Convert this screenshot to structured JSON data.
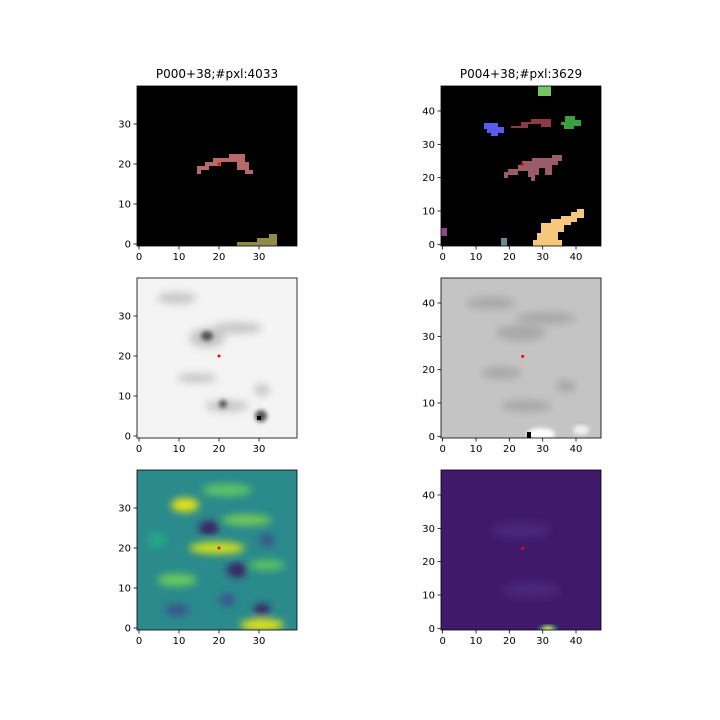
{
  "chart_data": [
    {
      "type": "heatmap",
      "title": "P000+38;#pxl:4033",
      "xlim": [
        -0.5,
        39.5
      ],
      "ylim": [
        -0.5,
        39.5
      ],
      "xticks": [
        0,
        10,
        20,
        30
      ],
      "yticks": [
        0,
        10,
        20,
        30
      ],
      "marker": {
        "x": 20,
        "y": 20,
        "color": "#ff0000"
      }
    },
    {
      "type": "heatmap",
      "title": "P004+38;#pxl:3629",
      "xlim": [
        -0.5,
        47.5
      ],
      "ylim": [
        -0.5,
        47.5
      ],
      "xticks": [
        0,
        10,
        20,
        30,
        40
      ],
      "yticks": [
        0,
        10,
        20,
        30,
        40
      ],
      "marker": {
        "x": 24,
        "y": 24,
        "color": "#ff0000"
      }
    },
    {
      "type": "heatmap",
      "xlim": [
        -0.5,
        39.5
      ],
      "ylim": [
        -0.5,
        39.5
      ],
      "xticks": [
        0,
        10,
        20,
        30
      ],
      "yticks": [
        0,
        10,
        20,
        30
      ],
      "marker": {
        "x": 20,
        "y": 20,
        "color": "#ff0000"
      }
    },
    {
      "type": "heatmap",
      "xlim": [
        -0.5,
        47.5
      ],
      "ylim": [
        -0.5,
        47.5
      ],
      "xticks": [
        0,
        10,
        20,
        30,
        40
      ],
      "yticks": [
        0,
        10,
        20,
        30,
        40
      ],
      "marker": {
        "x": 24,
        "y": 24,
        "color": "#ff0000"
      }
    },
    {
      "type": "heatmap",
      "xlim": [
        -0.5,
        39.5
      ],
      "ylim": [
        -0.5,
        39.5
      ],
      "xticks": [
        0,
        10,
        20,
        30
      ],
      "yticks": [
        0,
        10,
        20,
        30
      ],
      "marker": {
        "x": 20,
        "y": 20,
        "color": "#ff0000"
      }
    },
    {
      "type": "heatmap",
      "xlim": [
        -0.5,
        47.5
      ],
      "ylim": [
        -0.5,
        47.5
      ],
      "xticks": [
        0,
        10,
        20,
        30,
        40
      ],
      "yticks": [
        0,
        10,
        20,
        30,
        40
      ],
      "marker": {
        "x": 24,
        "y": 24,
        "color": "#ff0000"
      }
    }
  ]
}
